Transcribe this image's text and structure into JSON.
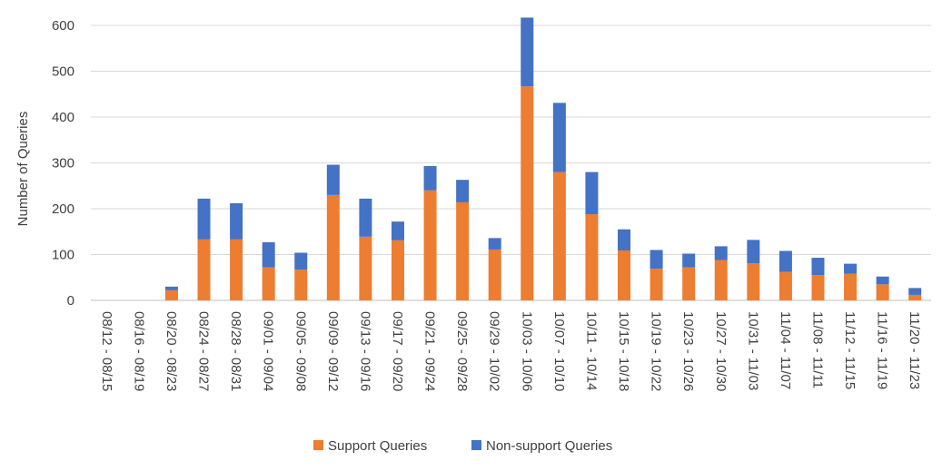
{
  "chart_data": {
    "type": "bar",
    "stacked": true,
    "ylabel": "Number of Queries",
    "xlabel": "",
    "ylim": [
      0,
      600
    ],
    "yticks": [
      0,
      100,
      200,
      300,
      400,
      500,
      600
    ],
    "grid": true,
    "legend_position": "bottom",
    "categories": [
      "08/12 - 08/15",
      "08/16 - 08/19",
      "08/20 - 08/23",
      "08/24 - 08/27",
      "08/28 - 08/31",
      "09/01 - 09/04",
      "09/05 - 09/08",
      "09/09 - 09/12",
      "09/13 - 09/16",
      "09/17 - 09/20",
      "09/21 - 09/24",
      "09/25 - 09/28",
      "09/29 - 10/02",
      "10/03 - 10/06",
      "10/07 - 10/10",
      "10/11 - 10/14",
      "10/15 - 10/18",
      "10/19 - 10/22",
      "10/23 - 10/26",
      "10/27 - 10/30",
      "10/31 - 11/03",
      "11/04 - 11/07",
      "11/08 - 11/11",
      "11/12 - 11/15",
      "11/16 - 11/19",
      "11/20 - 11/23"
    ],
    "series": [
      {
        "name": "Support Queries",
        "color": "#ED7D31",
        "values": [
          0,
          0,
          22,
          133,
          133,
          72,
          67,
          230,
          139,
          131,
          240,
          214,
          111,
          467,
          280,
          188,
          109,
          69,
          72,
          88,
          81,
          62,
          55,
          58,
          35,
          12
        ]
      },
      {
        "name": "Non-support Queries",
        "color": "#4472C4",
        "values": [
          0,
          0,
          8,
          89,
          79,
          55,
          37,
          66,
          83,
          41,
          53,
          49,
          25,
          150,
          151,
          92,
          46,
          41,
          30,
          30,
          51,
          46,
          38,
          22,
          17,
          15
        ]
      }
    ]
  }
}
